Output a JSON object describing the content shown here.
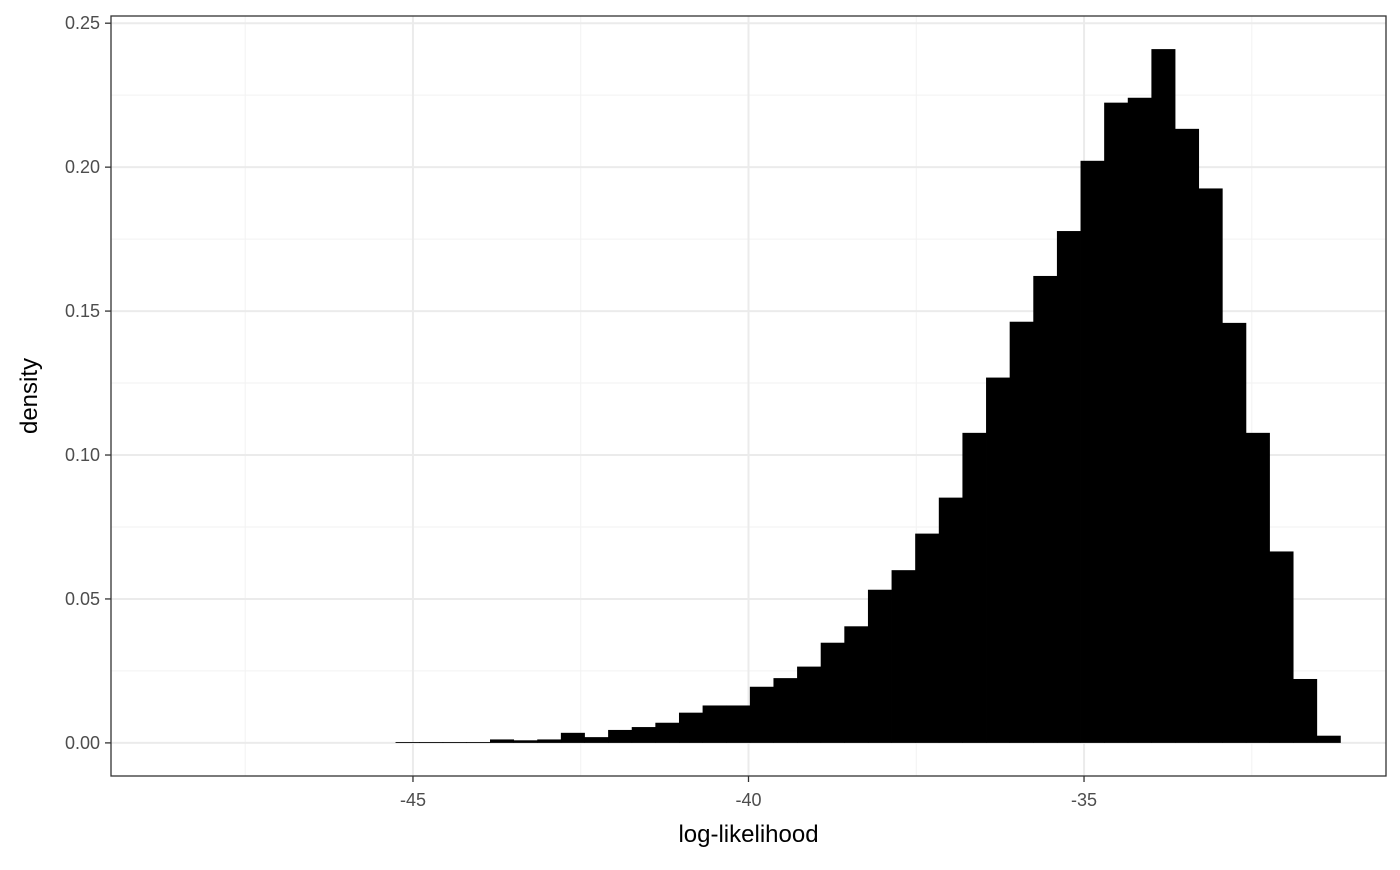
{
  "chart_data": {
    "type": "bar",
    "title": "",
    "xlabel": "log-likelihood",
    "ylabel": "density",
    "xlim": [
      -49.5,
      -30.5
    ],
    "ylim": [
      -0.0115,
      0.2525
    ],
    "x_major_ticks": [
      -45,
      -40,
      -35
    ],
    "x_major_tick_labels": [
      "-45",
      "-40",
      "-35"
    ],
    "x_minor_gridlines": [
      -47.5,
      -42.5,
      -37.5,
      -32.5
    ],
    "y_major_ticks": [
      0,
      0.05,
      0.1,
      0.15,
      0.2,
      0.25
    ],
    "y_major_tick_labels": [
      "0.00",
      "0.05",
      "0.10",
      "0.15",
      "0.20",
      "0.25"
    ],
    "y_minor_gridlines": [
      0.025,
      0.075,
      0.125,
      0.175,
      0.225
    ],
    "grid": true,
    "bar_color": "#000000",
    "bin_width": 0.352,
    "bins": [
      {
        "x_start": -45.26,
        "density": 0.0003
      },
      {
        "x_start": -44.908,
        "density": 0.0003
      },
      {
        "x_start": -44.556,
        "density": 0.0003
      },
      {
        "x_start": -44.204,
        "density": 0.0003
      },
      {
        "x_start": -43.852,
        "density": 0.0012
      },
      {
        "x_start": -43.5,
        "density": 0.0009
      },
      {
        "x_start": -43.148,
        "density": 0.0012
      },
      {
        "x_start": -42.796,
        "density": 0.0035
      },
      {
        "x_start": -42.444,
        "density": 0.002
      },
      {
        "x_start": -42.092,
        "density": 0.0045
      },
      {
        "x_start": -41.74,
        "density": 0.0055
      },
      {
        "x_start": -41.388,
        "density": 0.007
      },
      {
        "x_start": -41.036,
        "density": 0.0105
      },
      {
        "x_start": -40.684,
        "density": 0.013
      },
      {
        "x_start": -40.332,
        "density": 0.013
      },
      {
        "x_start": -39.98,
        "density": 0.0195
      },
      {
        "x_start": -39.628,
        "density": 0.0225
      },
      {
        "x_start": -39.276,
        "density": 0.0265
      },
      {
        "x_start": -38.924,
        "density": 0.0348
      },
      {
        "x_start": -38.572,
        "density": 0.0405
      },
      {
        "x_start": -38.22,
        "density": 0.0532
      },
      {
        "x_start": -37.868,
        "density": 0.06
      },
      {
        "x_start": -37.516,
        "density": 0.0727
      },
      {
        "x_start": -37.164,
        "density": 0.0852
      },
      {
        "x_start": -36.812,
        "density": 0.1077
      },
      {
        "x_start": -36.46,
        "density": 0.1269
      },
      {
        "x_start": -36.108,
        "density": 0.1463
      },
      {
        "x_start": -35.756,
        "density": 0.1622
      },
      {
        "x_start": -35.404,
        "density": 0.1778
      },
      {
        "x_start": -35.052,
        "density": 0.2022
      },
      {
        "x_start": -34.7,
        "density": 0.2224
      },
      {
        "x_start": -34.348,
        "density": 0.2241
      },
      {
        "x_start": -33.996,
        "density": 0.241
      },
      {
        "x_start": -33.644,
        "density": 0.2133
      },
      {
        "x_start": -33.292,
        "density": 0.1926
      },
      {
        "x_start": -32.94,
        "density": 0.1459
      },
      {
        "x_start": -32.588,
        "density": 0.1077
      },
      {
        "x_start": -32.236,
        "density": 0.0665
      },
      {
        "x_start": -31.884,
        "density": 0.0222
      },
      {
        "x_start": -31.532,
        "density": 0.0025
      }
    ]
  }
}
